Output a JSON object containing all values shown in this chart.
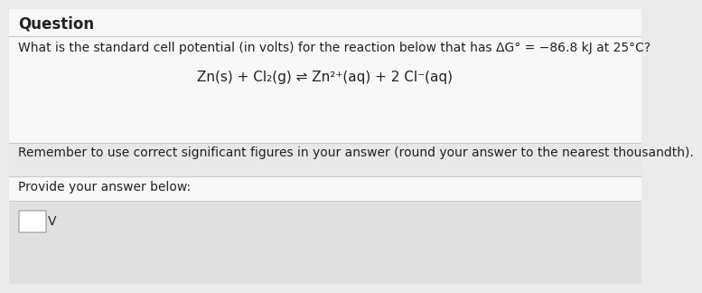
{
  "title": "Question",
  "question_text": "What is the standard cell potential (in volts) for the reaction below that has ΔG° = −86.8 kJ at 25°C?",
  "equation_left": "Zn(s) + Cl",
  "equation_right": "(g)",
  "equation_full": "Zn(s) + Cl₂(g) ⇌ Zn²⁺(aq) + 2 Cl⁻(aq)",
  "reminder_text": "Remember to use correct significant figures in your answer (round your answer to the nearest thousandth).",
  "answer_label": "Provide your answer below:",
  "answer_unit": "V",
  "bg_color": "#ebebeb",
  "white_bg": "#f8f8f8",
  "section_bg": "#e4e4e4",
  "divider_color": "#cccccc",
  "text_color": "#222222",
  "title_fontsize": 12,
  "body_fontsize": 10,
  "equation_fontsize": 11,
  "small_fontsize": 9
}
